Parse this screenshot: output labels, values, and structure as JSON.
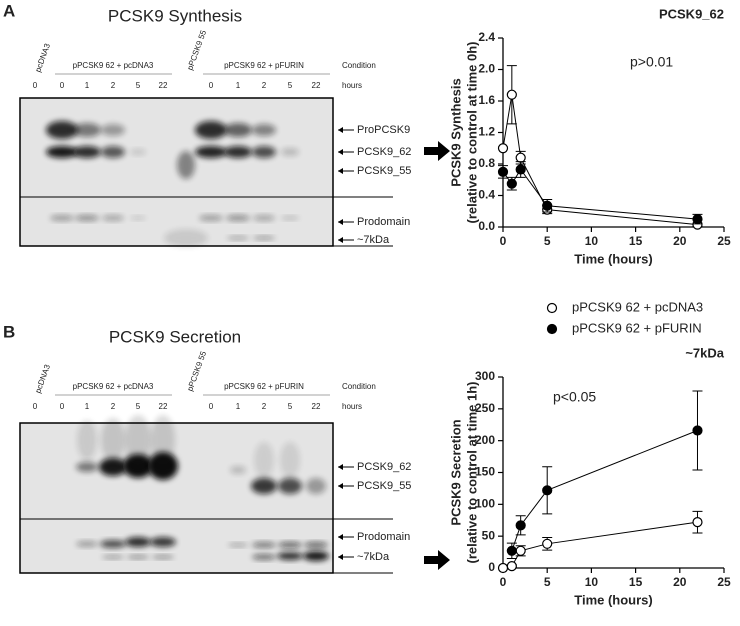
{
  "panels": [
    {
      "label": "A",
      "title": "PCSK9 Synthesis",
      "lanes": {
        "control": "pcDNA3",
        "group1": "pPCSK9 62 + pcDNA3",
        "single": "pPCSK9 55",
        "group2": "pPCSK9 62 + pFURIN",
        "condition": "Condition",
        "hours_label": "hours"
      },
      "hours": [
        "0",
        "0",
        "1",
        "2",
        "5",
        "22",
        "0",
        "1",
        "2",
        "5",
        "22"
      ],
      "bands": [
        "ProPCSK9",
        "PCSK9_62",
        "PCSK9_55",
        "Prodomain",
        "~7kDa"
      ]
    },
    {
      "label": "B",
      "title": "PCSK9 Secretion",
      "lanes": {
        "control": "pcDNA3",
        "group1": "pPCSK9 62 + pcDNA3",
        "single": "pPCSK9 55",
        "group2": "pPCSK9 62 + pFURIN",
        "condition": "Condition",
        "hours_label": "hours"
      },
      "hours": [
        "0",
        "0",
        "1",
        "2",
        "5",
        "22",
        "0",
        "1",
        "2",
        "5",
        "22"
      ],
      "bands": [
        "PCSK9_62",
        "PCSK9_55",
        "Prodomain",
        "~7kDa"
      ]
    }
  ],
  "chart_data": [
    {
      "type": "line",
      "title": "PCSK9_62",
      "ylabel": [
        "PCSK9 Synthesis",
        "(relative to control at time 0h)"
      ],
      "xlabel": "Time (hours)",
      "annotation": "p>0.01",
      "xlim": [
        0,
        25
      ],
      "xticks": [
        0,
        5,
        10,
        15,
        20,
        25
      ],
      "ylim": [
        0,
        2.4
      ],
      "yticks": [
        {
          "value": 0,
          "label": "0.0"
        },
        0.4,
        0.8,
        1.2,
        1.6,
        {
          "value": 2,
          "label": "2.0"
        },
        2.4
      ],
      "series": [
        {
          "color": "#ffffff",
          "edgecolor": "#000000",
          "x": [
            0,
            1,
            2,
            5,
            22
          ],
          "values": [
            1.0,
            1.68,
            0.88,
            0.22,
            0.03
          ],
          "errors": [
            0,
            0.37,
            0.08,
            0.05,
            0.02
          ]
        },
        {
          "color": "#000000",
          "edgecolor": "#000000",
          "x": [
            0,
            1,
            2,
            5,
            22
          ],
          "values": [
            0.7,
            0.55,
            0.73,
            0.27,
            0.1
          ],
          "errors": [
            0.08,
            0.08,
            0.1,
            0.08,
            0.06
          ]
        }
      ]
    },
    {
      "type": "line",
      "title": "~7kDa",
      "ylabel": [
        "PCSK9 Secretion",
        "(relative to control at time 1h)"
      ],
      "xlabel": "Time (hours)",
      "annotation": "p<0.05",
      "xlim": [
        0,
        25
      ],
      "xticks": [
        0,
        5,
        10,
        15,
        20,
        25
      ],
      "ylim": [
        0,
        300
      ],
      "yticks": [
        0,
        50,
        100,
        150,
        200,
        250,
        300
      ],
      "series": [
        {
          "name": "pPCSK9 62 + pcDNA3",
          "color": "#ffffff",
          "edgecolor": "#000000",
          "x": [
            0,
            1,
            2,
            5,
            22
          ],
          "values": [
            0,
            3,
            27,
            38,
            72
          ],
          "errors": [
            0,
            2,
            8,
            10,
            17
          ]
        },
        {
          "name": "pPCSK9 62 + pFURIN",
          "color": "#000000",
          "edgecolor": "#000000",
          "x": [
            1,
            2,
            5,
            22
          ],
          "values": [
            27,
            67,
            122,
            216
          ],
          "errors": [
            12,
            15,
            37,
            62
          ]
        }
      ]
    }
  ]
}
